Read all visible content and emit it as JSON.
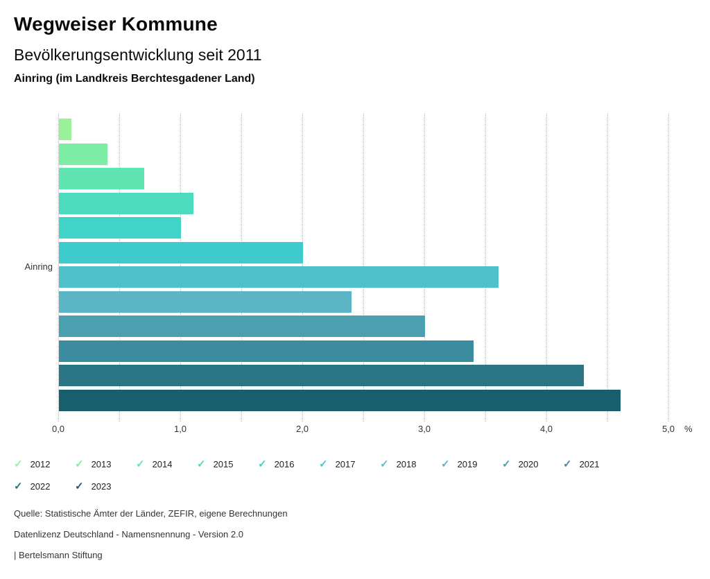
{
  "header": {
    "title": "Wegweiser Kommune",
    "subtitle": "Bevölkerungsentwicklung seit 2011",
    "region": "Ainring (im Landkreis Berchtesgadener Land)"
  },
  "chart_data": {
    "type": "bar",
    "orientation": "horizontal",
    "title": "Bevölkerungsentwicklung seit 2011",
    "group_label": "Ainring",
    "categories": [
      "2012",
      "2013",
      "2014",
      "2015",
      "2016",
      "2017",
      "2018",
      "2019",
      "2020",
      "2021",
      "2022",
      "2023"
    ],
    "values": [
      0.1,
      0.4,
      0.7,
      1.1,
      1.0,
      2.0,
      3.6,
      2.4,
      3.0,
      3.4,
      4.3,
      4.6
    ],
    "colors": [
      "#99F19A",
      "#7DEDA5",
      "#5FE4B2",
      "#4CDBBE",
      "#40D3C7",
      "#3ECBCE",
      "#4EC1CB",
      "#5CB5C4",
      "#4BA0B0",
      "#3A8C9E",
      "#2A7583",
      "#185F6E"
    ],
    "unit": "%",
    "xlim": [
      0,
      5
    ],
    "x_major_ticks": [
      {
        "value": 0,
        "label": "0,0"
      },
      {
        "value": 1,
        "label": "1,0"
      },
      {
        "value": 2,
        "label": "2,0"
      },
      {
        "value": 3,
        "label": "3,0"
      },
      {
        "value": 4,
        "label": "4,0"
      },
      {
        "value": 5,
        "label": "5,0"
      }
    ],
    "x_minor_grid_step": 0.5,
    "grid": true,
    "legend_position": "bottom"
  },
  "legend": {
    "check_glyph": "✓"
  },
  "footer": {
    "source": "Quelle: Statistische Ämter der Länder, ZEFIR, eigene Berechnungen",
    "license": "Datenlizenz Deutschland - Namensnennung - Version 2.0",
    "attribution": "| Bertelsmann Stiftung"
  }
}
